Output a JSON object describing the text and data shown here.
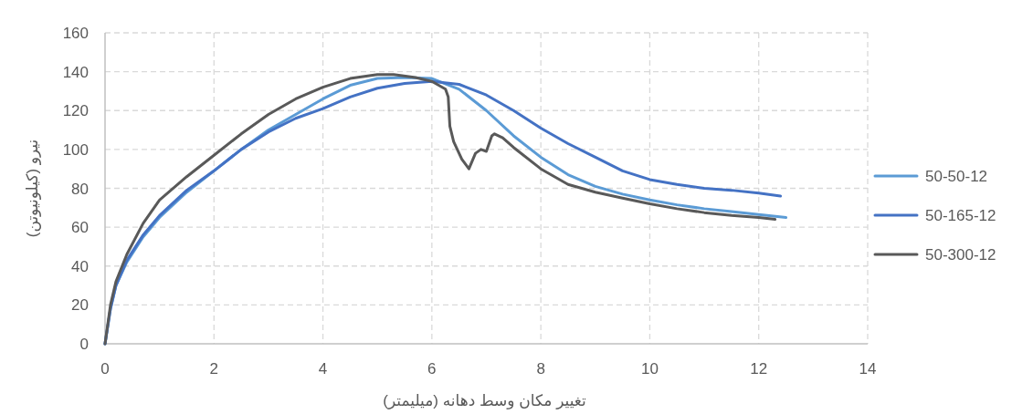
{
  "chart_data": {
    "type": "line",
    "xlabel": "تغییر مکان وسط دهانه (میلیمتر)",
    "ylabel": "نیرو (کیلونیوتن)",
    "xlim": [
      0,
      14
    ],
    "ylim": [
      0,
      160
    ],
    "xticks": [
      0,
      2,
      4,
      6,
      8,
      10,
      12,
      14
    ],
    "yticks": [
      0,
      20,
      40,
      60,
      80,
      100,
      120,
      140,
      160
    ],
    "grid": true,
    "legend": "right",
    "marker": "none",
    "line_style": "solid",
    "series": [
      {
        "name": "50-50-12",
        "color": "#5b9bd5",
        "x": [
          0,
          0.1,
          0.2,
          0.4,
          0.7,
          1,
          1.5,
          2,
          2.5,
          3,
          3.5,
          4,
          4.5,
          5,
          5.5,
          6,
          6.5,
          7,
          7.5,
          8,
          8.5,
          9,
          9.5,
          10,
          10.5,
          11,
          11.5,
          12,
          12.5
        ],
        "values": [
          0,
          18,
          30,
          42,
          55,
          65,
          78,
          89,
          100,
          110,
          118,
          126,
          133,
          136.5,
          137,
          136.5,
          131,
          120,
          107,
          96,
          87,
          81,
          77,
          74,
          71.5,
          69.5,
          68,
          66.5,
          65
        ]
      },
      {
        "name": "50-165-12",
        "color": "#4472c4",
        "x": [
          0,
          0.1,
          0.2,
          0.4,
          0.7,
          1,
          1.5,
          2,
          2.5,
          3,
          3.5,
          4,
          4.5,
          5,
          5.5,
          6,
          6.5,
          7,
          7.5,
          8,
          8.5,
          9,
          9.5,
          10,
          10.5,
          11,
          11.5,
          12,
          12.4
        ],
        "values": [
          0,
          18,
          30,
          43,
          56,
          66,
          79,
          89,
          100,
          109,
          116,
          121,
          127,
          131.5,
          134,
          135,
          133.5,
          128,
          120,
          111,
          103,
          96,
          89,
          84.5,
          82,
          80,
          79,
          77.5,
          76
        ]
      },
      {
        "name": "50-300-12",
        "color": "#595959",
        "x": [
          0,
          0.1,
          0.2,
          0.4,
          0.7,
          1,
          1.5,
          2,
          2.5,
          3,
          3.5,
          4,
          4.5,
          5,
          5.3,
          5.7,
          6,
          6.25,
          6.3,
          6.33,
          6.4,
          6.55,
          6.68,
          6.8,
          6.9,
          7.0,
          7.1,
          7.15,
          7.3,
          7.5,
          8,
          8.5,
          9,
          9.5,
          10,
          10.5,
          11,
          11.5,
          12,
          12.3
        ],
        "values": [
          0,
          20,
          32,
          46,
          62,
          74,
          86,
          97,
          108,
          118,
          126,
          132,
          136.5,
          138.5,
          138.5,
          137,
          135,
          131,
          127,
          112,
          104,
          95,
          90,
          98,
          100,
          99,
          107,
          108,
          106,
          101,
          90,
          82,
          78,
          75,
          72,
          69.5,
          67.5,
          66,
          65,
          64
        ]
      }
    ]
  }
}
